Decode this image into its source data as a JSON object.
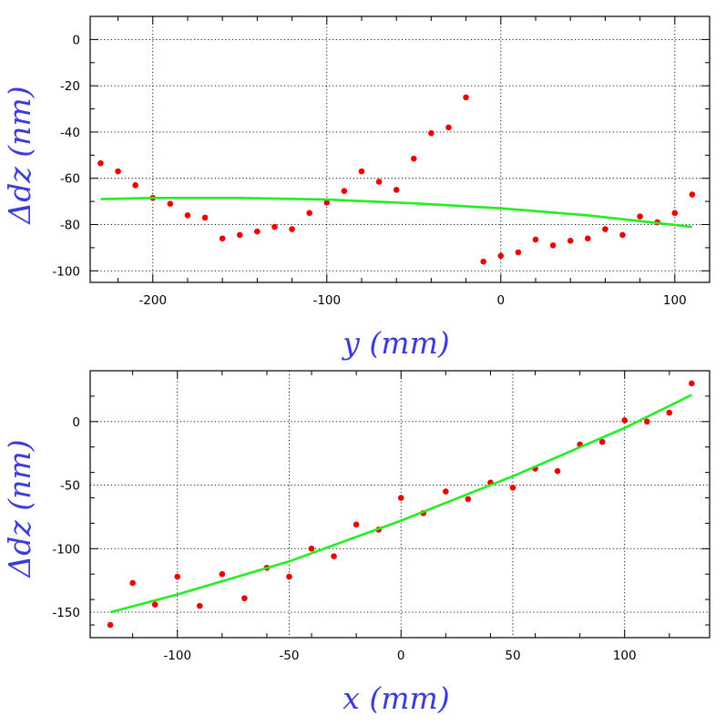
{
  "colors": {
    "points": "#ee0000",
    "fit": "#22ee22",
    "axis_title": "#3b3bdc",
    "frame": "#000000"
  },
  "chart_data": [
    {
      "type": "scatter",
      "title": "",
      "xlabel": "y (mm)",
      "ylabel": "Δdz (nm)",
      "xlim": [
        -236,
        120
      ],
      "ylim": [
        -105,
        10
      ],
      "xticks": [
        -200,
        -100,
        0,
        100
      ],
      "yticks": [
        0,
        -20,
        -40,
        -60,
        -80,
        -100
      ],
      "xtick_labels": [
        "-200",
        "-100",
        "0",
        "100"
      ],
      "ytick_labels": [
        "0",
        "-20",
        "-40",
        "-60",
        "-80",
        "-100"
      ],
      "grid": true,
      "series": [
        {
          "kind": "points",
          "x": [
            -230,
            -220,
            -210,
            -200,
            -190,
            -180,
            -170,
            -160,
            -150,
            -140,
            -130,
            -120,
            -110,
            -100,
            -90,
            -80,
            -70,
            -60,
            -50,
            -40,
            -30,
            -20,
            -10,
            0,
            10,
            20,
            30,
            40,
            50,
            60,
            70,
            80,
            90,
            100,
            110
          ],
          "y": [
            -53.5,
            -57,
            -63,
            -68.5,
            -71,
            -76,
            -77,
            -86,
            -84.5,
            -83,
            -81,
            -82,
            -75,
            -70.5,
            -65.5,
            -57,
            -61.5,
            -65,
            -51.5,
            -40.5,
            -38,
            -25,
            -96,
            -93.5,
            -92,
            -86.5,
            -89,
            -87,
            -86,
            -82,
            -84.5,
            -76.5,
            -79,
            -75,
            -67
          ]
        },
        {
          "kind": "fit",
          "x": [
            -230,
            -200,
            -150,
            -100,
            -50,
            0,
            50,
            110
          ],
          "y": [
            -69,
            -68.5,
            -68.5,
            -69.2,
            -70.8,
            -73,
            -76,
            -81
          ]
        }
      ]
    },
    {
      "type": "scatter",
      "title": "",
      "xlabel": "x (mm)",
      "ylabel": "Δdz (nm)",
      "xlim": [
        -139,
        138
      ],
      "ylim": [
        -170,
        40
      ],
      "xticks": [
        -100,
        -50,
        0,
        50,
        100
      ],
      "yticks": [
        0,
        -50,
        -100,
        -150
      ],
      "xtick_labels": [
        "-100",
        "-50",
        "0",
        "50",
        "100"
      ],
      "ytick_labels": [
        "0",
        "-50",
        "-100",
        "-150"
      ],
      "grid": true,
      "series": [
        {
          "kind": "points",
          "x": [
            -130,
            -120,
            -110,
            -100,
            -90,
            -80,
            -70,
            -60,
            -50,
            -40,
            -30,
            -20,
            -10,
            0,
            10,
            20,
            30,
            40,
            50,
            60,
            70,
            80,
            90,
            100,
            110,
            120,
            130
          ],
          "y": [
            -160,
            -127,
            -144,
            -122,
            -145,
            -120,
            -139,
            -115,
            -122,
            -100,
            -106,
            -81,
            -85,
            -60,
            -72,
            -55,
            -61,
            -48,
            -52,
            -37,
            -39,
            -18,
            -16,
            1,
            0,
            7,
            30
          ]
        },
        {
          "kind": "fit",
          "x": [
            -130,
            -100,
            -50,
            0,
            50,
            100,
            130
          ],
          "y": [
            -150,
            -136,
            -110,
            -78,
            -43,
            -5,
            21
          ]
        }
      ]
    }
  ]
}
